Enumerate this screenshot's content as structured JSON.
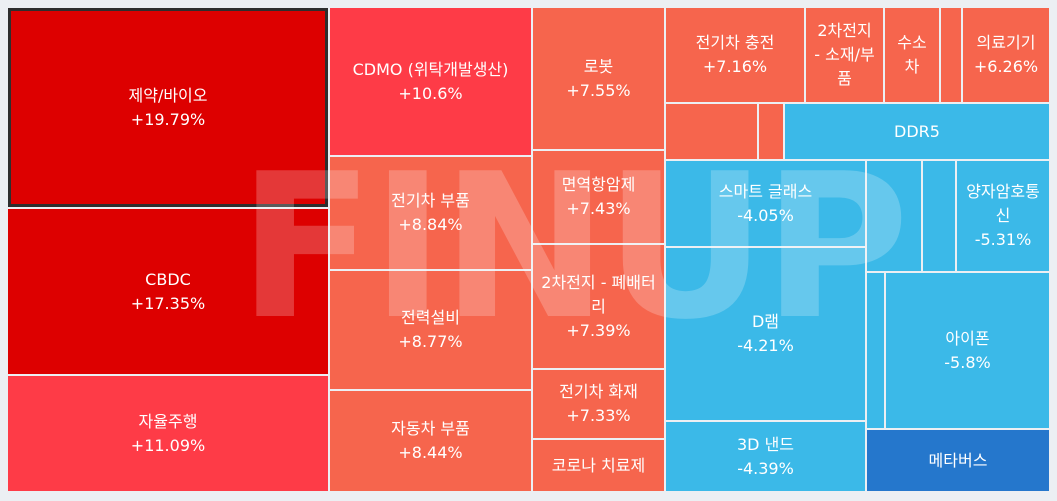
{
  "watermark": "FINUP",
  "colors": {
    "deep_red": "#dd0000",
    "red": "#fe3b47",
    "orange_red": "#f6654d",
    "light_blue": "#3bb9e8",
    "blue": "#2577cc",
    "background": "#eceff3"
  },
  "chart_data": {
    "type": "treemap",
    "unit": "%",
    "items": [
      {
        "label": "제약/바이오",
        "change": "+19.79%",
        "value": 19.79,
        "selected": true
      },
      {
        "label": "CBDC",
        "change": "+17.35%",
        "value": 17.35
      },
      {
        "label": "자율주행",
        "change": "+11.09%",
        "value": 11.09
      },
      {
        "label": "CDMO (위탁개발생산)",
        "change": "+10.6%",
        "value": 10.6
      },
      {
        "label": "전기차 부품",
        "change": "+8.84%",
        "value": 8.84
      },
      {
        "label": "전력설비",
        "change": "+8.77%",
        "value": 8.77
      },
      {
        "label": "자동차 부품",
        "change": "+8.44%",
        "value": 8.44
      },
      {
        "label": "로봇",
        "change": "+7.55%",
        "value": 7.55
      },
      {
        "label": "면역항암제",
        "change": "+7.43%",
        "value": 7.43
      },
      {
        "label": "2차전지 - 폐배터리",
        "change": "+7.39%",
        "value": 7.39
      },
      {
        "label": "전기차 화재",
        "change": "+7.33%",
        "value": 7.33
      },
      {
        "label": "코로나 치료제",
        "change": "",
        "value": null
      },
      {
        "label": "전기차 충전",
        "change": "+7.16%",
        "value": 7.16
      },
      {
        "label": "2차전지 - 소재/부품",
        "change": "",
        "value": null
      },
      {
        "label": "수소차",
        "change": "",
        "value": null
      },
      {
        "label": "",
        "change": "",
        "value": null
      },
      {
        "label": "의료기기",
        "change": "+6.26%",
        "value": 6.26
      },
      {
        "label": "",
        "change": "",
        "value": null
      },
      {
        "label": "",
        "change": "",
        "value": null
      },
      {
        "label": "DDR5",
        "change": "",
        "value": null
      },
      {
        "label": "스마트 글래스",
        "change": "-4.05%",
        "value": -4.05
      },
      {
        "label": "",
        "change": "",
        "value": null
      },
      {
        "label": "",
        "change": "",
        "value": null
      },
      {
        "label": "양자암호통신",
        "change": "-5.31%",
        "value": -5.31
      },
      {
        "label": "D램",
        "change": "-4.21%",
        "value": -4.21
      },
      {
        "label": "",
        "change": "",
        "value": null
      },
      {
        "label": "아이폰",
        "change": "-5.8%",
        "value": -5.8
      },
      {
        "label": "3D 낸드",
        "change": "-4.39%",
        "value": -4.39
      },
      {
        "label": "메타버스",
        "change": "",
        "value": null
      }
    ]
  }
}
